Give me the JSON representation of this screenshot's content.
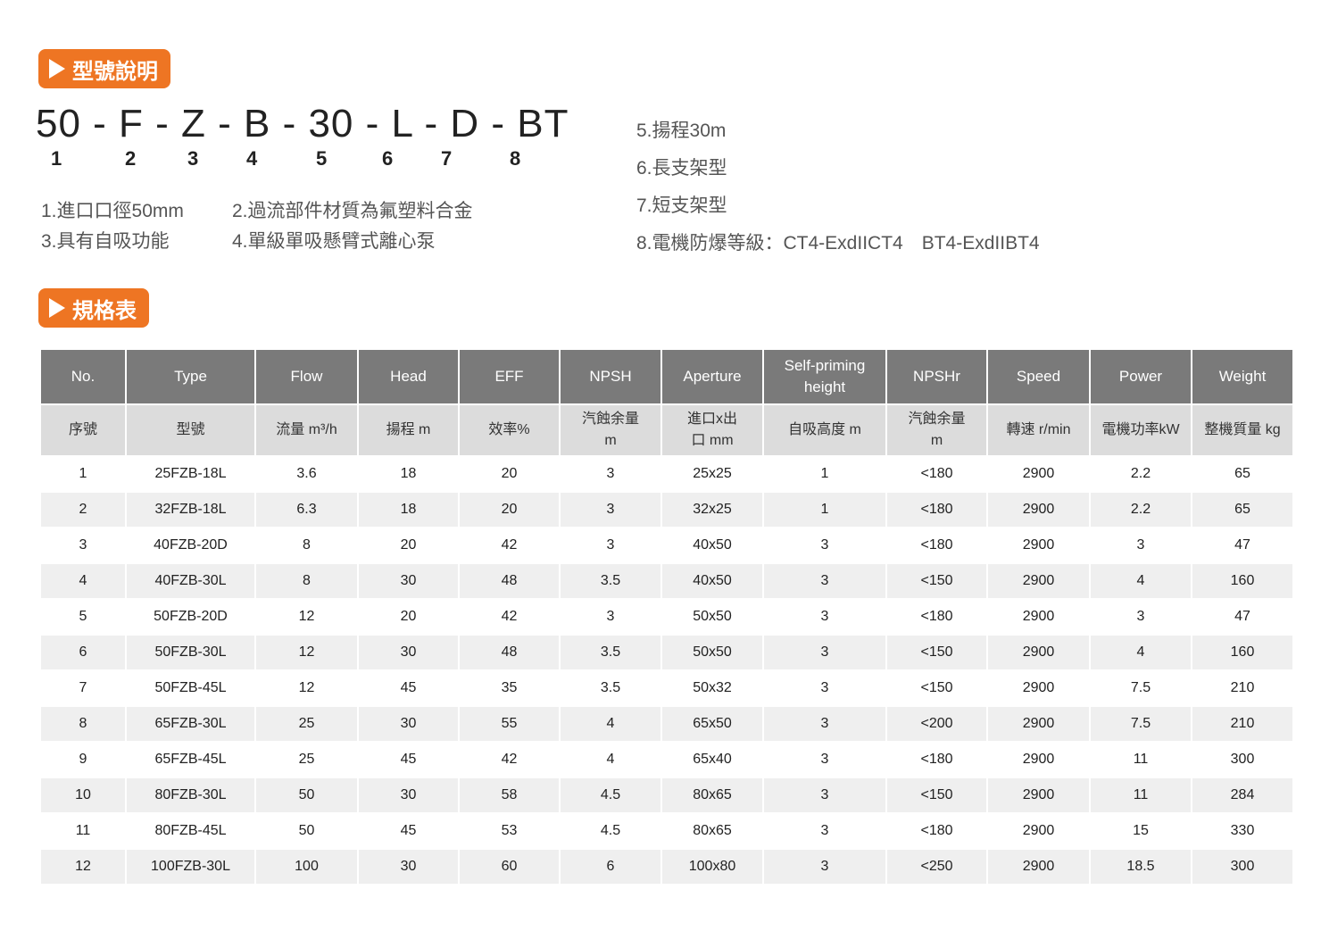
{
  "section1": {
    "title": "型號說明",
    "code": "50 - F - Z - B - 30 - L - D - BT",
    "positions": [
      "1",
      "2",
      "3",
      "4",
      "5",
      "6",
      "7",
      "8"
    ],
    "notes_left": [
      "1.進口口徑50mm",
      "3.具有自吸功能"
    ],
    "notes_mid": [
      "2.過流部件材質為氟塑料合金",
      "4.單級單吸懸臂式離心泵"
    ],
    "notes_right": [
      "5.揚程30m",
      "6.長支架型",
      "7.短支架型",
      "8.電機防爆等級：CT4-ExdIICT4　BT4-ExdIIBT4"
    ]
  },
  "section2": {
    "title": "規格表"
  },
  "accent_color": "#ee7523",
  "table": {
    "headers": [
      "No.",
      "Type",
      "Flow",
      "Head",
      "EFF",
      "NPSH",
      "Aperture",
      "Self-priming height",
      "NPSHr",
      "Speed",
      "Power",
      "Weight"
    ],
    "subheaders": [
      "序號",
      "型號",
      "流量 m³/h",
      "揚程 m",
      "效率%",
      "汽蝕余量 m",
      "進口x出口 mm",
      "自吸高度 m",
      "汽蝕余量 m",
      "轉速 r/min",
      "電機功率kW",
      "整機質量 kg"
    ],
    "rows": [
      [
        "1",
        "25FZB-18L",
        "3.6",
        "18",
        "20",
        "3",
        "25x25",
        "1",
        "<180",
        "2900",
        "2.2",
        "65"
      ],
      [
        "2",
        "32FZB-18L",
        "6.3",
        "18",
        "20",
        "3",
        "32x25",
        "1",
        "<180",
        "2900",
        "2.2",
        "65"
      ],
      [
        "3",
        "40FZB-20D",
        "8",
        "20",
        "42",
        "3",
        "40x50",
        "3",
        "<180",
        "2900",
        "3",
        "47"
      ],
      [
        "4",
        "40FZB-30L",
        "8",
        "30",
        "48",
        "3.5",
        "40x50",
        "3",
        "<150",
        "2900",
        "4",
        "160"
      ],
      [
        "5",
        "50FZB-20D",
        "12",
        "20",
        "42",
        "3",
        "50x50",
        "3",
        "<180",
        "2900",
        "3",
        "47"
      ],
      [
        "6",
        "50FZB-30L",
        "12",
        "30",
        "48",
        "3.5",
        "50x50",
        "3",
        "<150",
        "2900",
        "4",
        "160"
      ],
      [
        "7",
        "50FZB-45L",
        "12",
        "45",
        "35",
        "3.5",
        "50x32",
        "3",
        "<150",
        "2900",
        "7.5",
        "210"
      ],
      [
        "8",
        "65FZB-30L",
        "25",
        "30",
        "55",
        "4",
        "65x50",
        "3",
        "<200",
        "2900",
        "7.5",
        "210"
      ],
      [
        "9",
        "65FZB-45L",
        "25",
        "45",
        "42",
        "4",
        "65x40",
        "3",
        "<180",
        "2900",
        "11",
        "300"
      ],
      [
        "10",
        "80FZB-30L",
        "50",
        "30",
        "58",
        "4.5",
        "80x65",
        "3",
        "<150",
        "2900",
        "11",
        "284"
      ],
      [
        "11",
        "80FZB-45L",
        "50",
        "45",
        "53",
        "4.5",
        "80x65",
        "3",
        "<180",
        "2900",
        "15",
        "330"
      ],
      [
        "12",
        "100FZB-30L",
        "100",
        "30",
        "60",
        "6",
        "100x80",
        "3",
        "<250",
        "2900",
        "18.5",
        "300"
      ]
    ]
  }
}
